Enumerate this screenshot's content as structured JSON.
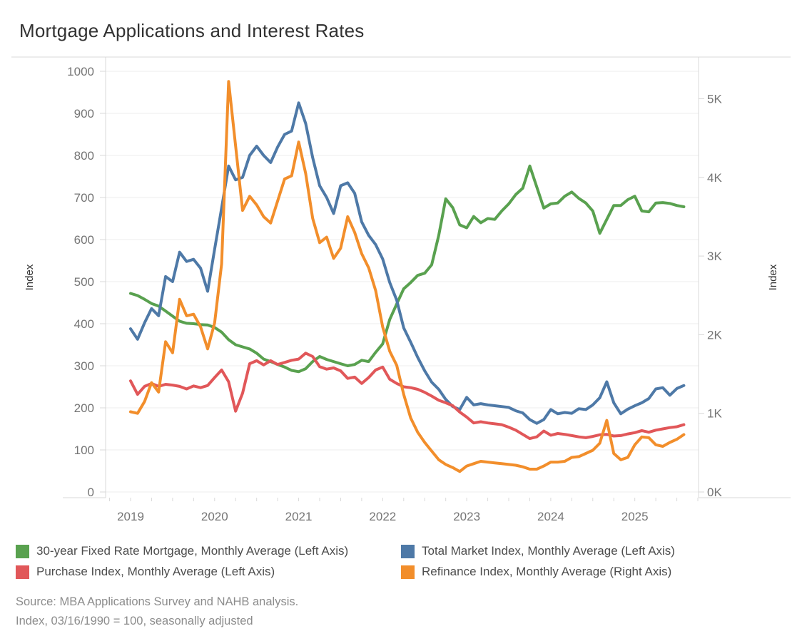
{
  "title": "Mortgage Applications and Interest Rates",
  "source": {
    "line1": "Source: MBA Applications Survey and NAHB analysis.",
    "line2": "Index, 03/16/1990 = 100, seasonally adjusted"
  },
  "colors": {
    "background": "#ffffff",
    "grid": "#ececec",
    "axis_line": "#d9d9d9",
    "tick_label": "#757575",
    "axis_title": "#333333",
    "title_text": "#323232",
    "legend_text": "#4d4d4d",
    "source_text": "#8c8c8c",
    "green": "#59A14F",
    "blue": "#4E79A7",
    "red": "#E15759",
    "orange": "#F28E2B"
  },
  "legend": [
    {
      "label": "30-year Fixed Rate Mortgage, Monthly Average (Left Axis)",
      "color": "#59A14F"
    },
    {
      "label": "Total Market Index, Monthly Average (Left Axis)",
      "color": "#4E79A7"
    },
    {
      "label": "Purchase Index, Monthly Average (Left Axis)",
      "color": "#E15759"
    },
    {
      "label": "Refinance Index, Monthly Average (Right Axis)",
      "color": "#F28E2B"
    }
  ],
  "chart_data": {
    "type": "line",
    "frequency": "monthly",
    "title": "Mortgage Applications and Interest Rates",
    "x_axis": {
      "years": [
        "2019",
        "2020",
        "2021",
        "2022",
        "2023",
        "2024",
        "2025"
      ],
      "tick_interval": "quarterly"
    },
    "left_axis": {
      "label": "Index",
      "min": 0,
      "max": 1000,
      "tick_step": 100,
      "tick_labels": [
        "0",
        "100",
        "200",
        "300",
        "400",
        "500",
        "600",
        "700",
        "800",
        "900",
        "1000"
      ]
    },
    "right_axis": {
      "label": "Index",
      "min": 0,
      "max": 5500,
      "tick_step": 1000,
      "tick_labels": [
        "0K",
        "1K",
        "2K",
        "3K",
        "4K",
        "5K"
      ]
    },
    "grid": true,
    "legend_position": "bottom",
    "x_months": [
      "2019-01",
      "2019-02",
      "2019-03",
      "2019-04",
      "2019-05",
      "2019-06",
      "2019-07",
      "2019-08",
      "2019-09",
      "2019-10",
      "2019-11",
      "2019-12",
      "2020-01",
      "2020-02",
      "2020-03",
      "2020-04",
      "2020-05",
      "2020-06",
      "2020-07",
      "2020-08",
      "2020-09",
      "2020-10",
      "2020-11",
      "2020-12",
      "2021-01",
      "2021-02",
      "2021-03",
      "2021-04",
      "2021-05",
      "2021-06",
      "2021-07",
      "2021-08",
      "2021-09",
      "2021-10",
      "2021-11",
      "2021-12",
      "2022-01",
      "2022-02",
      "2022-03",
      "2022-04",
      "2022-05",
      "2022-06",
      "2022-07",
      "2022-08",
      "2022-09",
      "2022-10",
      "2022-11",
      "2022-12",
      "2023-01",
      "2023-02",
      "2023-03",
      "2023-04",
      "2023-05",
      "2023-06",
      "2023-07",
      "2023-08",
      "2023-09",
      "2023-10",
      "2023-11",
      "2023-12",
      "2024-01",
      "2024-02",
      "2024-03",
      "2024-04",
      "2024-05",
      "2024-06",
      "2024-07",
      "2024-08",
      "2024-09",
      "2024-10",
      "2024-11",
      "2024-12",
      "2025-01",
      "2025-02",
      "2025-03",
      "2025-04",
      "2025-05",
      "2025-06",
      "2025-07",
      "2025-08"
    ],
    "series": [
      {
        "name": "30-year Fixed Rate Mortgage, Monthly Average (Left Axis)",
        "axis": "left",
        "color": "#59A14F",
        "values": [
          472,
          467,
          458,
          448,
          442,
          430,
          418,
          406,
          401,
          400,
          398,
          397,
          391,
          380,
          362,
          350,
          345,
          340,
          330,
          316,
          310,
          303,
          297,
          289,
          286,
          293,
          310,
          322,
          315,
          310,
          305,
          300,
          303,
          313,
          310,
          332,
          352,
          410,
          447,
          483,
          498,
          515,
          520,
          540,
          610,
          697,
          676,
          635,
          628,
          655,
          640,
          650,
          648,
          668,
          685,
          707,
          722,
          775,
          725,
          675,
          685,
          687,
          703,
          713,
          698,
          687,
          668,
          615,
          648,
          681,
          681,
          695,
          703,
          668,
          666,
          687,
          688,
          686,
          681,
          678
        ]
      },
      {
        "name": "Total Market Index, Monthly Average (Left Axis)",
        "axis": "left",
        "color": "#4E79A7",
        "values": [
          388,
          363,
          402,
          436,
          419,
          512,
          500,
          570,
          548,
          553,
          532,
          477,
          577,
          675,
          775,
          742,
          748,
          800,
          822,
          800,
          783,
          820,
          850,
          858,
          925,
          876,
          795,
          728,
          700,
          662,
          728,
          735,
          710,
          642,
          610,
          588,
          554,
          498,
          456,
          390,
          356,
          320,
          288,
          261,
          244,
          220,
          203,
          196,
          225,
          207,
          210,
          207,
          205,
          203,
          201,
          193,
          188,
          172,
          163,
          172,
          196,
          186,
          189,
          187,
          198,
          196,
          207,
          224,
          262,
          212,
          186,
          197,
          205,
          212,
          222,
          245,
          248,
          230,
          246,
          253
        ]
      },
      {
        "name": "Purchase Index, Monthly Average (Left Axis)",
        "axis": "left",
        "color": "#E15759",
        "values": [
          264,
          232,
          251,
          258,
          251,
          256,
          254,
          251,
          245,
          252,
          248,
          253,
          272,
          290,
          262,
          192,
          235,
          305,
          312,
          302,
          312,
          303,
          308,
          313,
          316,
          330,
          322,
          298,
          292,
          295,
          288,
          270,
          273,
          258,
          272,
          290,
          297,
          268,
          258,
          250,
          248,
          244,
          237,
          228,
          218,
          212,
          205,
          190,
          178,
          164,
          167,
          164,
          162,
          160,
          154,
          147,
          137,
          127,
          131,
          145,
          135,
          139,
          137,
          134,
          131,
          129,
          132,
          136,
          137,
          133,
          134,
          138,
          141,
          146,
          142,
          147,
          150,
          153,
          155,
          160
        ]
      },
      {
        "name": "Refinance Index, Monthly Average (Right Axis)",
        "axis": "right",
        "color": "#F28E2B",
        "values": [
          1020,
          1000,
          1150,
          1390,
          1270,
          1910,
          1770,
          2450,
          2240,
          2260,
          2100,
          1820,
          2150,
          2900,
          5220,
          4400,
          3580,
          3760,
          3650,
          3500,
          3420,
          3700,
          3980,
          4020,
          4450,
          4050,
          3480,
          3170,
          3240,
          2970,
          3100,
          3500,
          3300,
          3030,
          2850,
          2560,
          2100,
          1790,
          1610,
          1240,
          940,
          760,
          630,
          520,
          410,
          350,
          310,
          260,
          330,
          360,
          390,
          380,
          370,
          360,
          350,
          340,
          320,
          290,
          290,
          330,
          380,
          380,
          390,
          440,
          450,
          490,
          530,
          620,
          910,
          490,
          410,
          440,
          600,
          700,
          690,
          600,
          580,
          630,
          670,
          730
        ]
      }
    ]
  }
}
